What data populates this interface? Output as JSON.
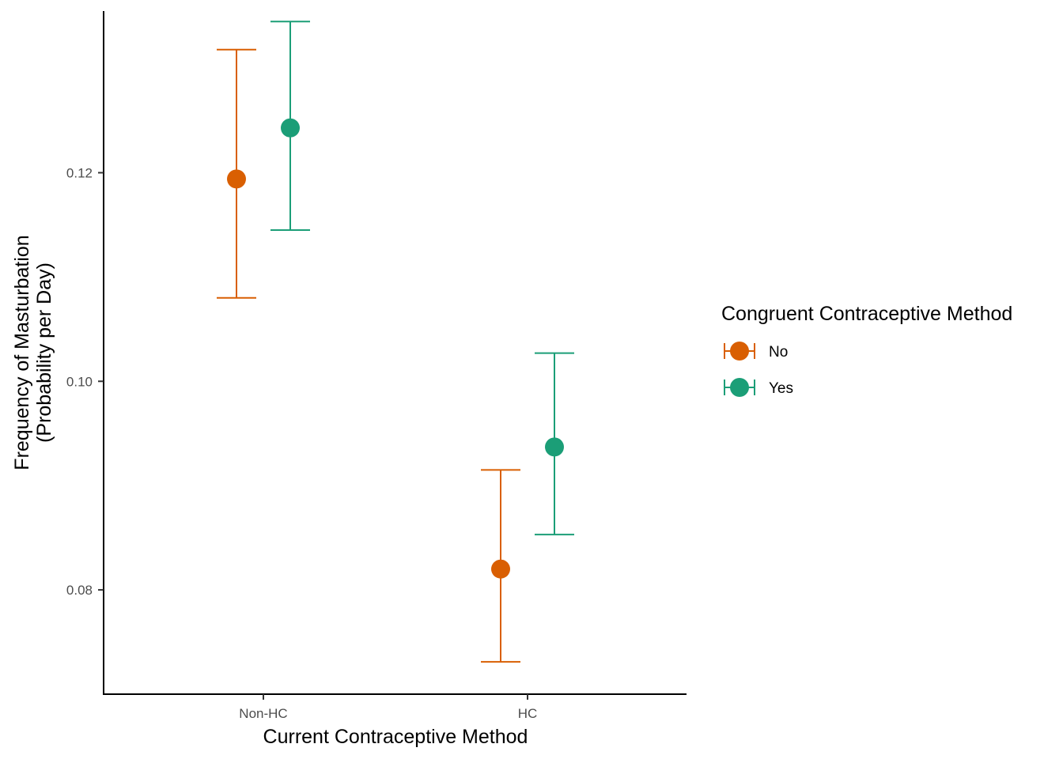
{
  "chart_data": {
    "type": "scatter",
    "subtype": "point-with-errorbars",
    "title": "",
    "xlabel": "Current Contraceptive Method",
    "ylabel_lines": [
      "Frequency of Masturbation",
      "(Probability per Day)"
    ],
    "categories": [
      "Non-HC",
      "HC"
    ],
    "ylim": [
      0.07,
      0.1355
    ],
    "yticks": [
      0.08,
      0.1,
      0.12
    ],
    "ytick_labels": [
      "0.08",
      "0.10",
      "0.12"
    ],
    "grid": false,
    "legend": {
      "title": "Congruent Contraceptive Method",
      "position": "right"
    },
    "series": [
      {
        "name": "No",
        "color": "#D95F02",
        "values": [
          0.1194,
          0.082
        ],
        "lower": [
          0.108,
          0.0731
        ],
        "upper": [
          0.1318,
          0.0915
        ]
      },
      {
        "name": "Yes",
        "color": "#1B9E77",
        "values": [
          0.1243,
          0.0937
        ],
        "lower": [
          0.1145,
          0.0853
        ],
        "upper": [
          0.1345,
          0.1027
        ]
      }
    ]
  }
}
